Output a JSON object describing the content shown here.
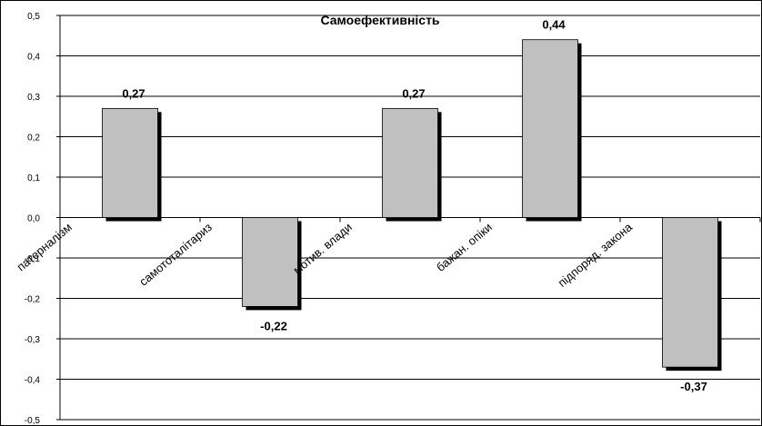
{
  "chart_data": {
    "type": "bar",
    "title": "Самоефективність",
    "categories": [
      "патерналізм",
      "самототалітариз",
      "мотив. влади",
      "бажан. опіки",
      "підпоряд. закона"
    ],
    "values": [
      0.27,
      -0.22,
      0.27,
      0.44,
      -0.37
    ],
    "data_labels": [
      "0,27",
      "-0,22",
      "0,27",
      "0,44",
      "-0,37"
    ],
    "ylim": [
      -0.5,
      0.5
    ],
    "yticks": [
      0.5,
      0.4,
      0.3,
      0.2,
      0.1,
      0.0,
      -0.1,
      -0.2,
      -0.3,
      -0.4,
      -0.5
    ],
    "ytick_labels": [
      "0,5",
      "0,4",
      "0,3",
      "0,2",
      "0,1",
      "0,0",
      "-0,1",
      "-0,2",
      "-0,3",
      "-0,4",
      "-0,5"
    ],
    "xlabel": "",
    "ylabel": "",
    "grid": true,
    "legend": "none",
    "colors": {
      "bar_fill": "#c0c0c0",
      "bar_shadow": "#000000",
      "grid": "#000000"
    }
  }
}
